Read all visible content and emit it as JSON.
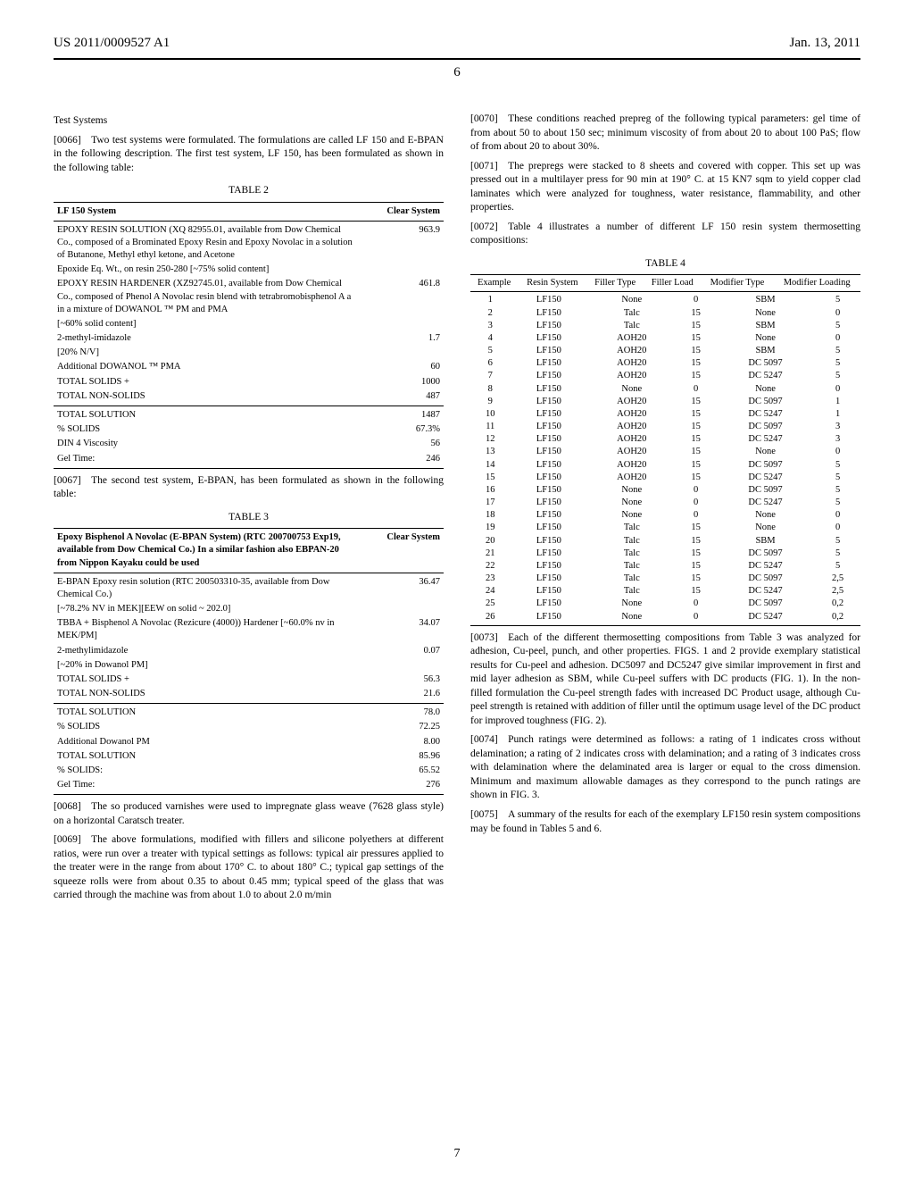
{
  "header": {
    "patent_number": "US 2011/0009527 A1",
    "date": "Jan. 13, 2011"
  },
  "page_number": "6",
  "left_column": {
    "section_title": "Test Systems",
    "p0066": "[0066] Two test systems were formulated. The formulations are called LF 150 and E-BPAN in the following description. The first test system, LF 150, has been formulated as shown in the following table:",
    "table2": {
      "caption": "TABLE 2",
      "col1_header": "LF 150 System",
      "col2_header": "Clear System",
      "rows_main": [
        [
          "EPOXY RESIN SOLUTION (XQ 82955.01, available from Dow Chemical Co., composed of a Brominated Epoxy Resin and Epoxy Novolac in a solution of Butanone, Methyl ethyl ketone, and Acetone",
          "963.9"
        ],
        [
          "Epoxide Eq. Wt., on resin 250-280 [~75% solid content]",
          ""
        ],
        [
          "EPOXY RESIN HARDENER (XZ92745.01, available from Dow Chemical Co., composed of Phenol A Novolac resin blend with tetrabromobisphenol A a in a mixture of DOWANOL ™ PM and PMA",
          "461.8"
        ],
        [
          "[~60% solid content]",
          ""
        ],
        [
          "2-methyl-imidazole",
          "1.7"
        ],
        [
          "[20% N/V]",
          ""
        ],
        [
          "Additional DOWANOL ™ PMA",
          "60"
        ],
        [
          "TOTAL SOLIDS +",
          "1000"
        ],
        [
          "TOTAL NON-SOLIDS",
          "487"
        ]
      ],
      "rows_footer": [
        [
          "TOTAL SOLUTION",
          "1487"
        ],
        [
          "% SOLIDS",
          "67.3%"
        ],
        [
          "DIN 4 Viscosity",
          "56"
        ],
        [
          "Gel Time:",
          "246"
        ]
      ]
    },
    "p0067": "[0067] The second test system, E-BPAN, has been formulated as shown in the following table:",
    "table3": {
      "caption": "TABLE 3",
      "col1_header": "Epoxy Bisphenol A Novolac (E-BPAN System) (RTC 200700753 Exp19, available from Dow Chemical Co.) In a similar fashion also EBPAN-20 from Nippon Kayaku could be used",
      "col2_header": "Clear System",
      "rows_main": [
        [
          "E-BPAN Epoxy resin solution (RTC 200503310-35, available from Dow Chemical Co.)",
          "36.47"
        ],
        [
          "[~78.2% NV in MEK][EEW on solid ~ 202.0]",
          ""
        ],
        [
          "TBBA + Bisphenol A Novolac (Rezicure (4000)) Hardener [~60.0% nv in MEK/PM]",
          "34.07"
        ],
        [
          "2-methylimidazole",
          "0.07"
        ],
        [
          "[~20% in Dowanol PM]",
          ""
        ],
        [
          "TOTAL SOLIDS +",
          "56.3"
        ],
        [
          "TOTAL NON-SOLIDS",
          "21.6"
        ]
      ],
      "rows_footer": [
        [
          "TOTAL SOLUTION",
          "78.0"
        ],
        [
          "% SOLIDS",
          "72.25"
        ],
        [
          "Additional Dowanol PM",
          "8.00"
        ],
        [
          "TOTAL SOLUTION",
          "85.96"
        ],
        [
          "% SOLIDS:",
          "65.52"
        ],
        [
          "Gel Time:",
          "276"
        ]
      ]
    },
    "p0068": "[0068] The so produced varnishes were used to impregnate glass weave (7628 glass style) on a horizontal Caratsch treater.",
    "p0069": "[0069] The above formulations, modified with fillers and silicone polyethers at different ratios, were run over a treater with typical settings as follows: typical air pressures applied to the treater were in the range from about 170° C. to about 180° C.; typical gap settings of the squeeze rolls were from about 0.35 to about 0.45 mm; typical speed of the glass that was carried through the machine was from about 1.0 to about 2.0 m/min"
  },
  "right_column": {
    "p0070": "[0070] These conditions reached prepreg of the following typical parameters: gel time of from about 50 to about 150 sec; minimum viscosity of from about 20 to about 100 PaS; flow of from about 20 to about 30%.",
    "p0071": "[0071] The prepregs were stacked to 8 sheets and covered with copper. This set up was pressed out in a multilayer press for 90 min at 190° C. at 15 KN7 sqm to yield copper clad laminates which were analyzed for toughness, water resistance, flammability, and other properties.",
    "p0072": "[0072] Table 4 illustrates a number of different LF 150 resin system thermosetting compositions:",
    "table4": {
      "caption": "TABLE 4",
      "headers": [
        "Example",
        "Resin System",
        "Filler Type",
        "Filler Load",
        "Modifier Type",
        "Modifier Loading"
      ],
      "rows": [
        [
          "1",
          "LF150",
          "None",
          "0",
          "SBM",
          "5"
        ],
        [
          "2",
          "LF150",
          "Talc",
          "15",
          "None",
          "0"
        ],
        [
          "3",
          "LF150",
          "Talc",
          "15",
          "SBM",
          "5"
        ],
        [
          "4",
          "LF150",
          "AOH20",
          "15",
          "None",
          "0"
        ],
        [
          "5",
          "LF150",
          "AOH20",
          "15",
          "SBM",
          "5"
        ],
        [
          "6",
          "LF150",
          "AOH20",
          "15",
          "DC 5097",
          "5"
        ],
        [
          "7",
          "LF150",
          "AOH20",
          "15",
          "DC 5247",
          "5"
        ],
        [
          "8",
          "LF150",
          "None",
          "0",
          "None",
          "0"
        ],
        [
          "9",
          "LF150",
          "AOH20",
          "15",
          "DC 5097",
          "1"
        ],
        [
          "10",
          "LF150",
          "AOH20",
          "15",
          "DC 5247",
          "1"
        ],
        [
          "11",
          "LF150",
          "AOH20",
          "15",
          "DC 5097",
          "3"
        ],
        [
          "12",
          "LF150",
          "AOH20",
          "15",
          "DC 5247",
          "3"
        ],
        [
          "13",
          "LF150",
          "AOH20",
          "15",
          "None",
          "0"
        ],
        [
          "14",
          "LF150",
          "AOH20",
          "15",
          "DC 5097",
          "5"
        ],
        [
          "15",
          "LF150",
          "AOH20",
          "15",
          "DC 5247",
          "5"
        ],
        [
          "16",
          "LF150",
          "None",
          "0",
          "DC 5097",
          "5"
        ],
        [
          "17",
          "LF150",
          "None",
          "0",
          "DC 5247",
          "5"
        ],
        [
          "18",
          "LF150",
          "None",
          "0",
          "None",
          "0"
        ],
        [
          "19",
          "LF150",
          "Talc",
          "15",
          "None",
          "0"
        ],
        [
          "20",
          "LF150",
          "Talc",
          "15",
          "SBM",
          "5"
        ],
        [
          "21",
          "LF150",
          "Talc",
          "15",
          "DC 5097",
          "5"
        ],
        [
          "22",
          "LF150",
          "Talc",
          "15",
          "DC 5247",
          "5"
        ],
        [
          "23",
          "LF150",
          "Talc",
          "15",
          "DC 5097",
          "2,5"
        ],
        [
          "24",
          "LF150",
          "Talc",
          "15",
          "DC 5247",
          "2,5"
        ],
        [
          "25",
          "LF150",
          "None",
          "0",
          "DC 5097",
          "0,2"
        ],
        [
          "26",
          "LF150",
          "None",
          "0",
          "DC 5247",
          "0,2"
        ]
      ]
    },
    "p0073": "[0073] Each of the different thermosetting compositions from Table 3 was analyzed for adhesion, Cu-peel, punch, and other properties. FIGS. 1 and 2 provide exemplary statistical results for Cu-peel and adhesion. DC5097 and DC5247 give similar improvement in first and mid layer adhesion as SBM, while Cu-peel suffers with DC products (FIG. 1). In the non-filled formulation the Cu-peel strength fades with increased DC Product usage, although Cu-peel strength is retained with addition of filler until the optimum usage level of the DC product for improved toughness (FIG. 2).",
    "p0074": "[0074] Punch ratings were determined as follows: a rating of 1 indicates cross without delamination; a rating of 2 indicates cross with delamination; and a rating of 3 indicates cross with delamination where the delaminated area is larger or equal to the cross dimension. Minimum and maximum allowable damages as they correspond to the punch ratings are shown in FIG. 3.",
    "p0075": "[0075] A summary of the results for each of the exemplary LF150 resin system compositions may be found in Tables 5 and 6."
  },
  "footer_page": "7"
}
